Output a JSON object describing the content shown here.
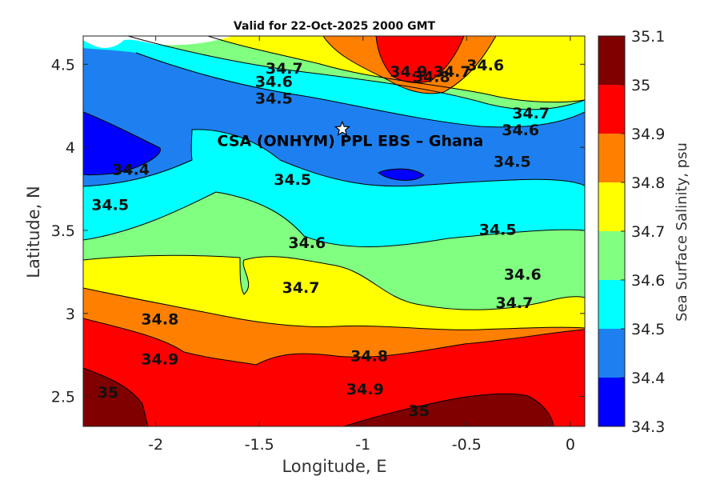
{
  "chart_data": {
    "type": "contour-map",
    "title": "Valid for 22-Oct-2025 2000 GMT",
    "xlabel": "Longitude, E",
    "ylabel": "Latitude, N",
    "xlim": [
      -2.35,
      0.07
    ],
    "ylim": [
      2.32,
      4.67
    ],
    "x_ticks": [
      "-2",
      "-1.5",
      "-1",
      "-0.5",
      "0"
    ],
    "x_tick_values": [
      -2,
      -1.5,
      -1,
      -0.5,
      0
    ],
    "y_ticks": [
      "2.5",
      "3",
      "3.5",
      "4",
      "4.5"
    ],
    "y_tick_values": [
      2.5,
      3,
      3.5,
      4,
      4.5
    ],
    "colorbar": {
      "label": "Sea Surface Salinity, psu",
      "ticks": [
        "35.1",
        "35",
        "34.9",
        "34.8",
        "34.7",
        "34.6",
        "34.5",
        "34.4",
        "34.3"
      ],
      "levels": [
        {
          "range": "34.3-34.4",
          "color": "#0000ff"
        },
        {
          "range": "34.4-34.5",
          "color": "#1e80f0"
        },
        {
          "range": "34.5-34.6",
          "color": "#00ffff"
        },
        {
          "range": "34.6-34.7",
          "color": "#80ff80"
        },
        {
          "range": "34.7-34.8",
          "color": "#ffff00"
        },
        {
          "range": "34.8-34.9",
          "color": "#ff8000"
        },
        {
          "range": "34.9-35",
          "color": "#ff0000"
        },
        {
          "range": "35-35.1",
          "color": "#800000"
        }
      ]
    },
    "contour_labels": [
      {
        "text": "34.7",
        "lon": -1.38,
        "lat": 4.47
      },
      {
        "text": "34.6",
        "lon": -1.43,
        "lat": 4.39
      },
      {
        "text": "34.5",
        "lon": -1.43,
        "lat": 4.29
      },
      {
        "text": "34.9",
        "lon": -0.78,
        "lat": 4.45
      },
      {
        "text": "34.8",
        "lon": -0.67,
        "lat": 4.42
      },
      {
        "text": "34.7",
        "lon": -0.57,
        "lat": 4.45
      },
      {
        "text": "34.6",
        "lon": -0.41,
        "lat": 4.49
      },
      {
        "text": "34.7",
        "lon": -0.19,
        "lat": 4.2
      },
      {
        "text": "34.6",
        "lon": -0.24,
        "lat": 4.1
      },
      {
        "text": "34.5",
        "lon": -0.28,
        "lat": 3.91
      },
      {
        "text": "34.4",
        "lon": -2.12,
        "lat": 3.86
      },
      {
        "text": "34.5",
        "lon": -2.22,
        "lat": 3.65
      },
      {
        "text": "34.5",
        "lon": -1.34,
        "lat": 3.8
      },
      {
        "text": "34.5",
        "lon": -0.35,
        "lat": 3.5
      },
      {
        "text": "34.6",
        "lon": -1.27,
        "lat": 3.42
      },
      {
        "text": "34.7",
        "lon": -1.3,
        "lat": 3.15
      },
      {
        "text": "34.6",
        "lon": -0.23,
        "lat": 3.23
      },
      {
        "text": "34.7",
        "lon": -0.27,
        "lat": 3.06
      },
      {
        "text": "34.8",
        "lon": -1.98,
        "lat": 2.96
      },
      {
        "text": "34.9",
        "lon": -1.98,
        "lat": 2.72
      },
      {
        "text": "34.8",
        "lon": -0.97,
        "lat": 2.74
      },
      {
        "text": "34.9",
        "lon": -0.99,
        "lat": 2.54
      },
      {
        "text": "35",
        "lon": -2.23,
        "lat": 2.52
      },
      {
        "text": "35",
        "lon": -0.73,
        "lat": 2.41
      }
    ],
    "site": {
      "label": "CSA (ONHYM) PPL EBS  – Ghana",
      "lon": -1.1,
      "lat": 4.11
    }
  }
}
